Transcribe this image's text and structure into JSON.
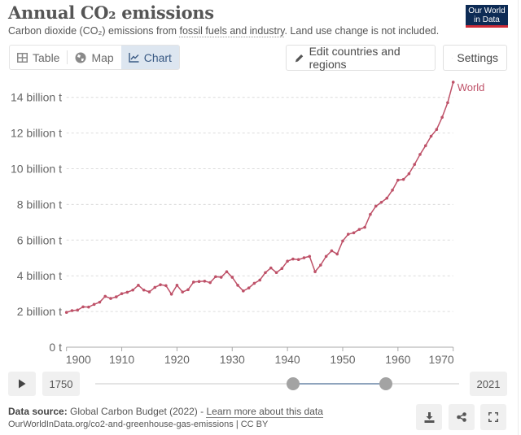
{
  "header": {
    "title": "Annual CO₂ emissions",
    "subtitle_pre": "Carbon dioxide (CO₂) emissions from ",
    "subtitle_link": "fossil fuels and industry",
    "subtitle_post": ". Land use change is not included.",
    "logo_line1": "Our World",
    "logo_line2": "in Data"
  },
  "tabs": [
    {
      "label": "Table",
      "icon": "table-icon",
      "active": false
    },
    {
      "label": "Map",
      "icon": "globe-icon",
      "active": false
    },
    {
      "label": "Chart",
      "icon": "line-chart-icon",
      "active": true
    }
  ],
  "toolbar": {
    "edit_label": "Edit countries and regions",
    "settings_label": "Settings"
  },
  "colors": {
    "series": "#be5168",
    "accent_tab_bg": "#dde6f0",
    "accent_tab_text": "#3a5a84"
  },
  "chart_data": {
    "type": "line",
    "title": "Annual CO₂ emissions",
    "xlabel": "",
    "ylabel": "",
    "xlim": [
      1900,
      1970
    ],
    "ylim": [
      0,
      15
    ],
    "grid": true,
    "x_ticks": [
      "1900",
      "1910",
      "1920",
      "1930",
      "1940",
      "1950",
      "1960",
      "1970"
    ],
    "y_ticks": [
      {
        "value": 0,
        "label": "0 t"
      },
      {
        "value": 2,
        "label": "2 billion t"
      },
      {
        "value": 4,
        "label": "4 billion t"
      },
      {
        "value": 6,
        "label": "6 billion t"
      },
      {
        "value": 8,
        "label": "8 billion t"
      },
      {
        "value": 10,
        "label": "10 billion t"
      },
      {
        "value": 12,
        "label": "12 billion t"
      },
      {
        "value": 14,
        "label": "14 billion t"
      }
    ],
    "legend": "end-of-line label",
    "x": [
      1900,
      1901,
      1902,
      1903,
      1904,
      1905,
      1906,
      1907,
      1908,
      1909,
      1910,
      1911,
      1912,
      1913,
      1914,
      1915,
      1916,
      1917,
      1918,
      1919,
      1920,
      1921,
      1922,
      1923,
      1924,
      1925,
      1926,
      1927,
      1928,
      1929,
      1930,
      1931,
      1932,
      1933,
      1934,
      1935,
      1936,
      1937,
      1938,
      1939,
      1940,
      1941,
      1942,
      1943,
      1944,
      1945,
      1946,
      1947,
      1948,
      1949,
      1950,
      1951,
      1952,
      1953,
      1954,
      1955,
      1956,
      1957,
      1958,
      1959,
      1960,
      1961,
      1962,
      1963,
      1964,
      1965,
      1966,
      1967,
      1968,
      1969,
      1970
    ],
    "series": [
      {
        "name": "World",
        "unit": "billion t",
        "values": [
          1.95,
          2.05,
          2.08,
          2.26,
          2.25,
          2.4,
          2.52,
          2.85,
          2.73,
          2.82,
          3.0,
          3.08,
          3.2,
          3.47,
          3.2,
          3.1,
          3.35,
          3.5,
          3.45,
          2.97,
          3.47,
          3.09,
          3.22,
          3.65,
          3.68,
          3.7,
          3.62,
          3.95,
          3.92,
          4.23,
          3.92,
          3.47,
          3.15,
          3.32,
          3.58,
          3.76,
          4.18,
          4.44,
          4.18,
          4.41,
          4.82,
          4.94,
          4.91,
          5.01,
          5.09,
          4.23,
          4.6,
          5.09,
          5.4,
          5.22,
          5.95,
          6.33,
          6.41,
          6.6,
          6.72,
          7.44,
          7.9,
          8.12,
          8.35,
          8.8,
          9.36,
          9.4,
          9.72,
          10.24,
          10.8,
          11.29,
          11.82,
          12.2,
          12.88,
          13.7,
          14.85
        ]
      }
    ]
  },
  "timeline": {
    "play_label": "play",
    "start_year": "1750",
    "end_year": "2021",
    "range_start_year": 1900,
    "range_end_year": 1970
  },
  "footer": {
    "source_label": "Data source:",
    "source_text": " Global Carbon Budget (2022) - ",
    "learn_more": "Learn more about this data",
    "url": "OurWorldInData.org/co2-and-greenhouse-gas-emissions | CC BY"
  }
}
